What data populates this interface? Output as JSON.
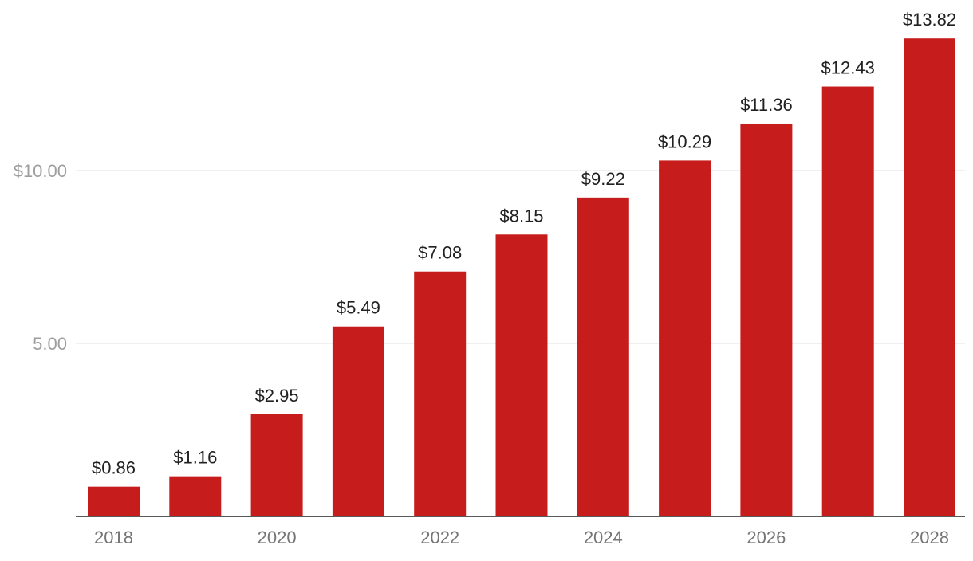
{
  "chart_data": {
    "type": "bar",
    "categories": [
      "2018",
      "2019",
      "2020",
      "2021",
      "2022",
      "2023",
      "2024",
      "2025",
      "2026",
      "2027",
      "2028"
    ],
    "x_tick_labels": [
      "2018",
      "2020",
      "2022",
      "2024",
      "2026",
      "2028"
    ],
    "values": [
      0.86,
      1.16,
      2.95,
      5.49,
      7.08,
      8.15,
      9.22,
      10.29,
      11.36,
      12.43,
      13.82
    ],
    "data_labels": [
      "$0.86",
      "$1.16",
      "$2.95",
      "$5.49",
      "$7.08",
      "$8.15",
      "$9.22",
      "$10.29",
      "$11.36",
      "$12.43",
      "$13.82"
    ],
    "y_ticks": [
      {
        "value": 5,
        "label": "5.00"
      },
      {
        "value": 10,
        "label": "$10.00"
      }
    ],
    "ylim": [
      0,
      14
    ],
    "grid": true,
    "bar_color": "#c71c1c",
    "title": "",
    "xlabel": "",
    "ylabel": ""
  }
}
